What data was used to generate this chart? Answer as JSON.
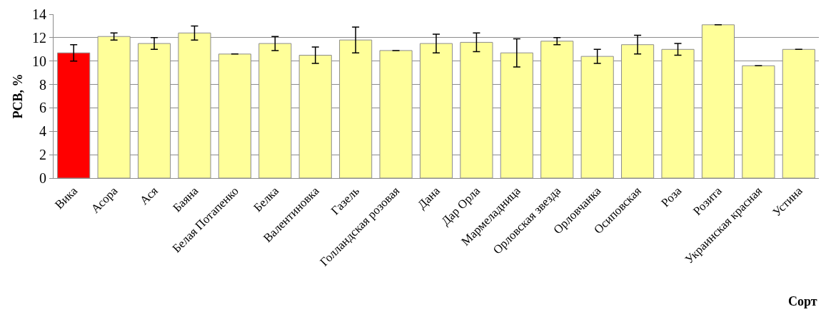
{
  "chart_data": {
    "type": "bar",
    "ylabel": "РСВ, %",
    "xlabel": "Сорт",
    "categories": [
      "Вика",
      "Асора",
      "Ася",
      "Баяна",
      "Белая Потапенко",
      "Белка",
      "Валентиновка",
      "Газель",
      "Голландская розовая",
      "Дана",
      "Дар Орла",
      "Мармеладница",
      "Орловская звезда",
      "Орловчанка",
      "Осиповская",
      "Роза",
      "Розита",
      "Украинская красная",
      "Устина"
    ],
    "values": [
      10.7,
      12.1,
      11.5,
      12.4,
      10.6,
      11.5,
      10.5,
      11.8,
      10.9,
      11.5,
      11.6,
      10.7,
      11.7,
      10.4,
      11.4,
      11.0,
      13.1,
      9.6,
      11.0
    ],
    "errors": [
      0.7,
      0.3,
      0.5,
      0.6,
      0,
      0.6,
      0.7,
      1.1,
      0,
      0.8,
      0.8,
      1.2,
      0.3,
      0.6,
      0.8,
      0.5,
      0,
      0,
      0
    ],
    "colors": [
      "#ff0000",
      "#ffff99",
      "#ffff99",
      "#ffff99",
      "#ffff99",
      "#ffff99",
      "#ffff99",
      "#ffff99",
      "#ffff99",
      "#ffff99",
      "#ffff99",
      "#ffff99",
      "#ffff99",
      "#ffff99",
      "#ffff99",
      "#ffff99",
      "#ffff99",
      "#ffff99",
      "#ffff99"
    ],
    "ylim": [
      0,
      14
    ],
    "yticks": [
      0,
      2,
      4,
      6,
      8,
      10,
      12,
      14
    ],
    "grid": "y"
  }
}
